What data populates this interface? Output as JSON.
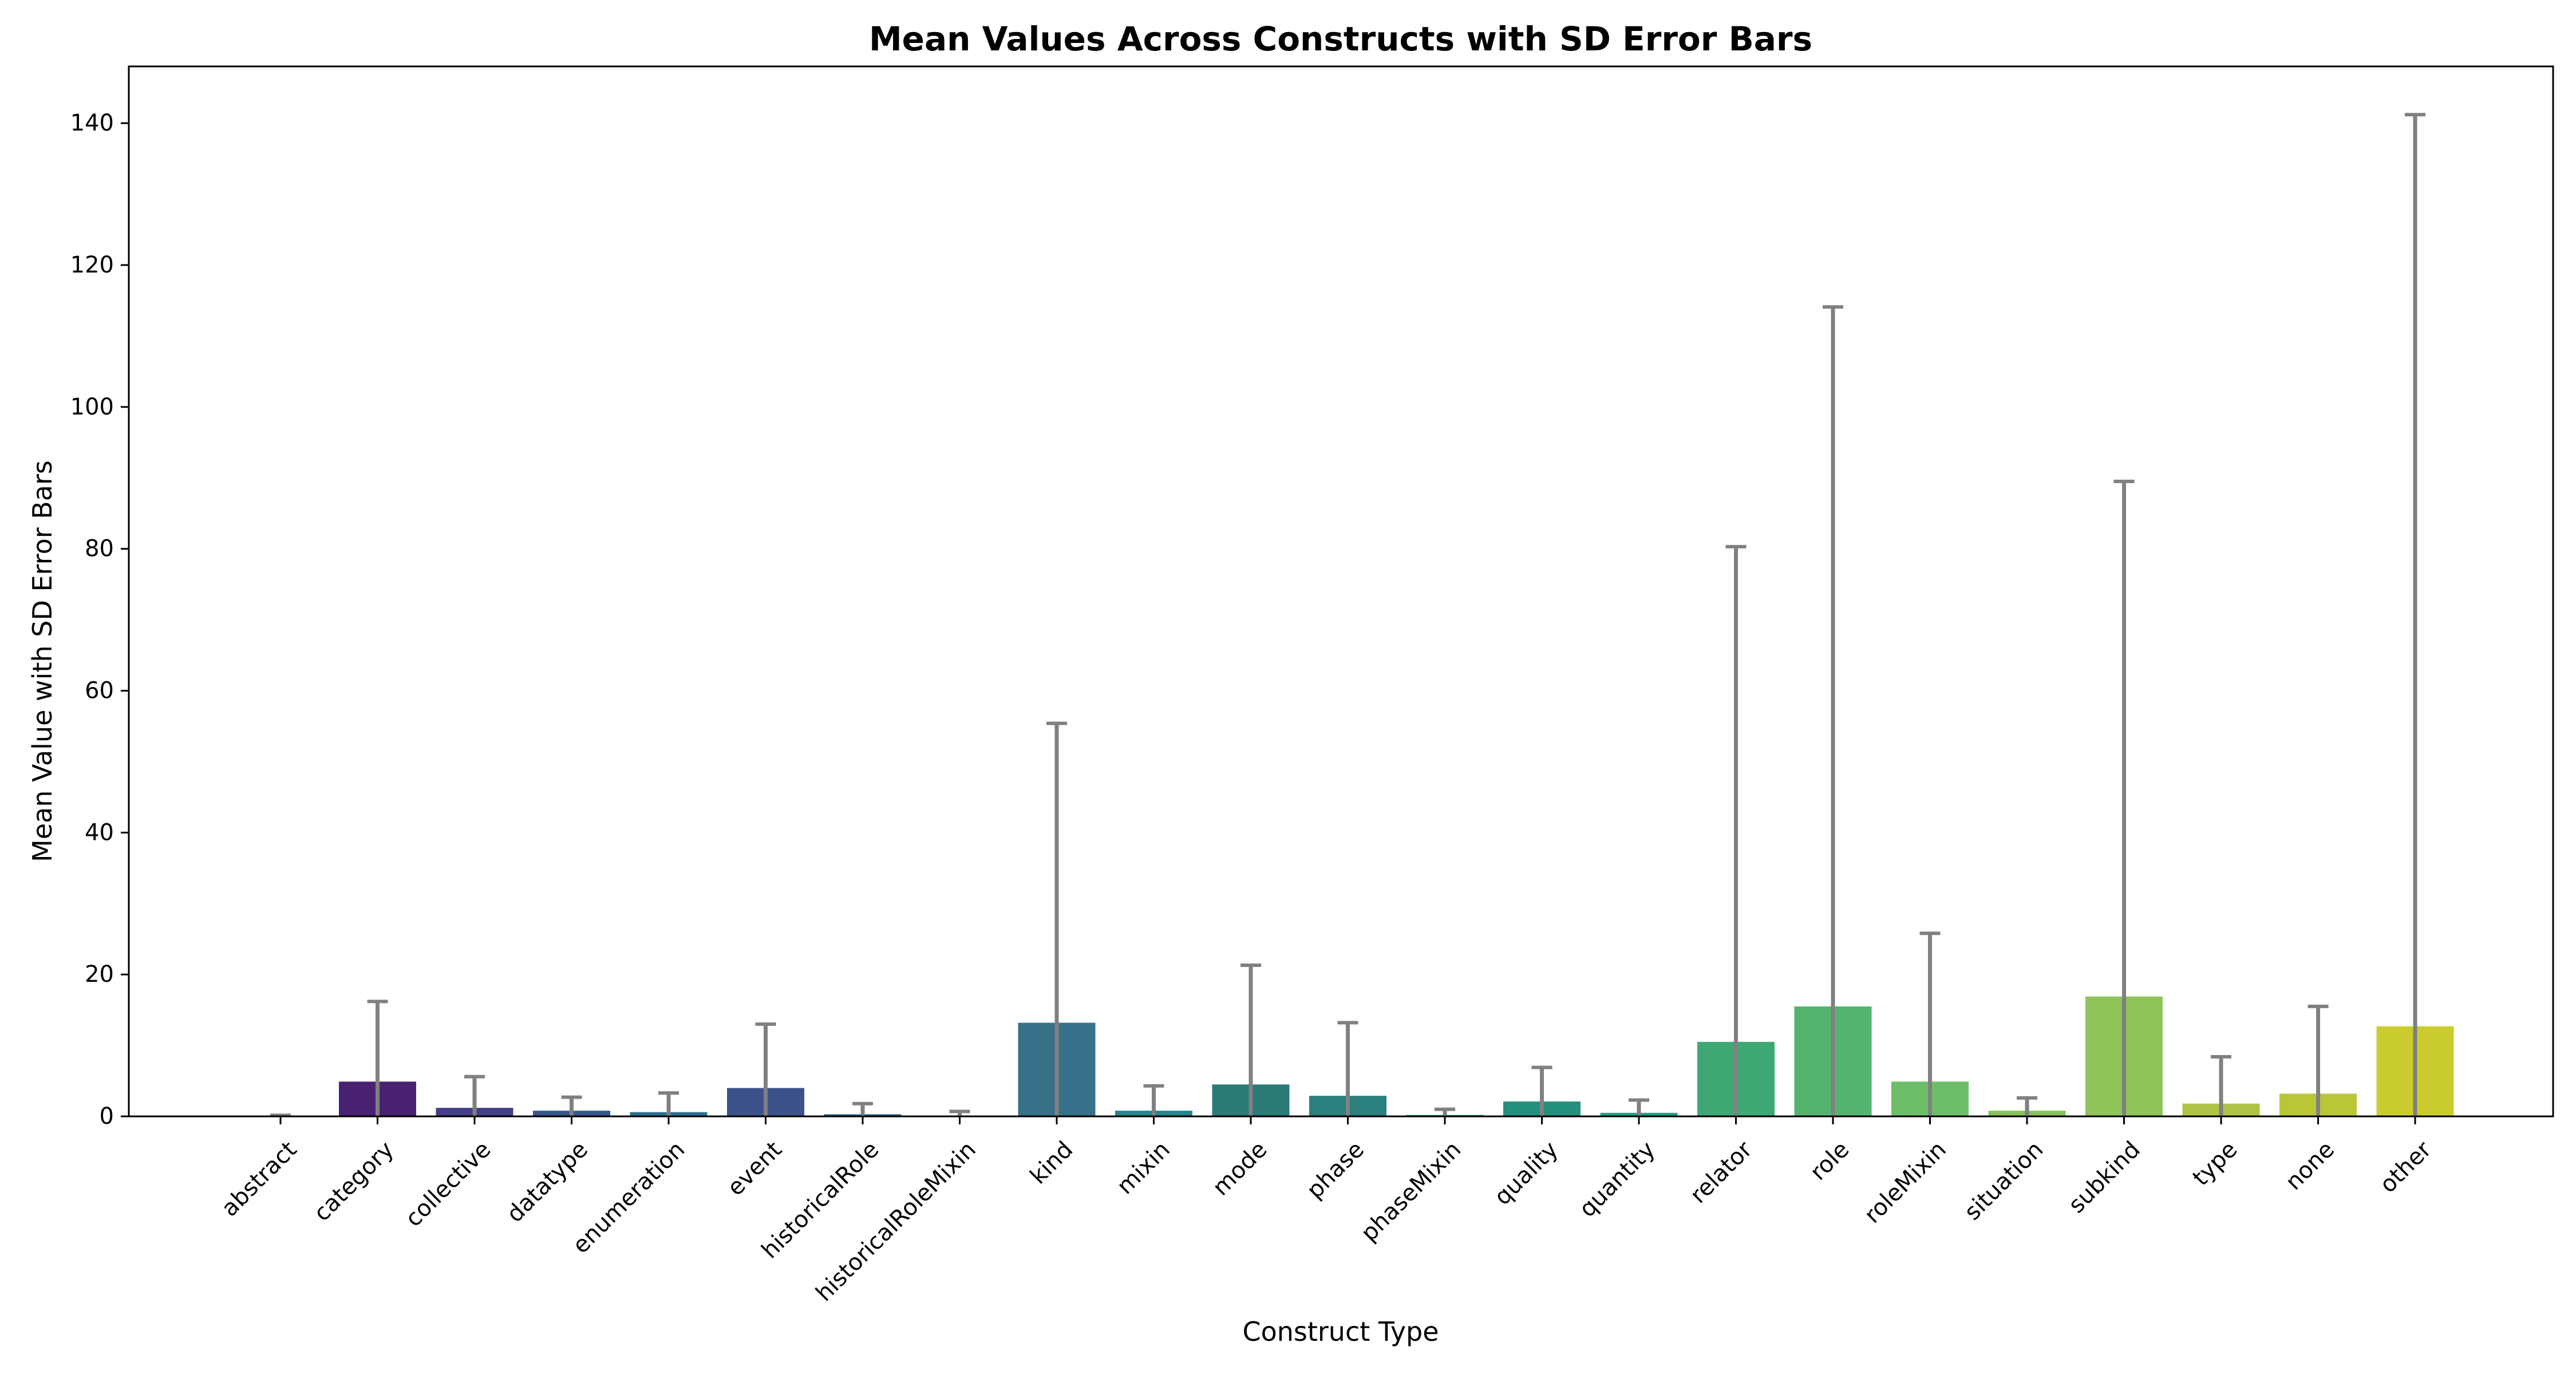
{
  "chart_data": {
    "type": "bar",
    "title": "Mean Values Across Constructs with SD Error Bars",
    "xlabel": "Construct Type",
    "ylabel": "Mean Value with SD Error Bars",
    "ylim": [
      0,
      148
    ],
    "yticks": [
      0,
      20,
      40,
      60,
      80,
      100,
      120,
      140
    ],
    "grid": false,
    "error_bars": "SD",
    "error_bar_color": "#808080",
    "categories": [
      "abstract",
      "category",
      "collective",
      "datatype",
      "enumeration",
      "event",
      "historicalRole",
      "historicalRoleMixin",
      "kind",
      "mixin",
      "mode",
      "phase",
      "phaseMixin",
      "quality",
      "quantity",
      "relator",
      "role",
      "roleMixin",
      "situation",
      "subkind",
      "type",
      "none",
      "other"
    ],
    "values": [
      0.05,
      4.9,
      1.2,
      0.8,
      0.6,
      4.0,
      0.3,
      0.1,
      13.2,
      0.8,
      4.5,
      2.9,
      0.2,
      2.1,
      0.5,
      10.5,
      15.5,
      4.9,
      0.8,
      16.9,
      1.8,
      3.2,
      12.7
    ],
    "errors": [
      0.1,
      11.3,
      4.4,
      1.9,
      2.7,
      9.0,
      1.5,
      0.6,
      42.2,
      3.5,
      16.8,
      10.3,
      0.8,
      4.8,
      1.8,
      69.8,
      98.6,
      20.9,
      1.8,
      72.6,
      6.6,
      12.3,
      128.5
    ],
    "colors": [
      "#440154",
      "#482173",
      "#433e85",
      "#38588c",
      "#2d708e",
      "#3b528b",
      "#31688e",
      "#29798e",
      "#38718a",
      "#25858e",
      "#2a7a78",
      "#2a807d",
      "#1e9b8a",
      "#23907e",
      "#1fa187",
      "#3da873",
      "#55b370",
      "#6cbf68",
      "#86c35b",
      "#8ec45a",
      "#afc246",
      "#b8c638",
      "#cbcd2e"
    ],
    "tick_label_colors": [
      "#000000",
      "#000000",
      "#000000",
      "#000000",
      "#000000",
      "#000000",
      "#000000",
      "#000000",
      "#000000",
      "#000000",
      "#000000",
      "#000000",
      "#000000",
      "#000000",
      "#000000",
      "#000000",
      "#000000",
      "#000000",
      "#000000",
      "#000000",
      "#000000",
      "#0000cc",
      "#ff0000"
    ]
  }
}
